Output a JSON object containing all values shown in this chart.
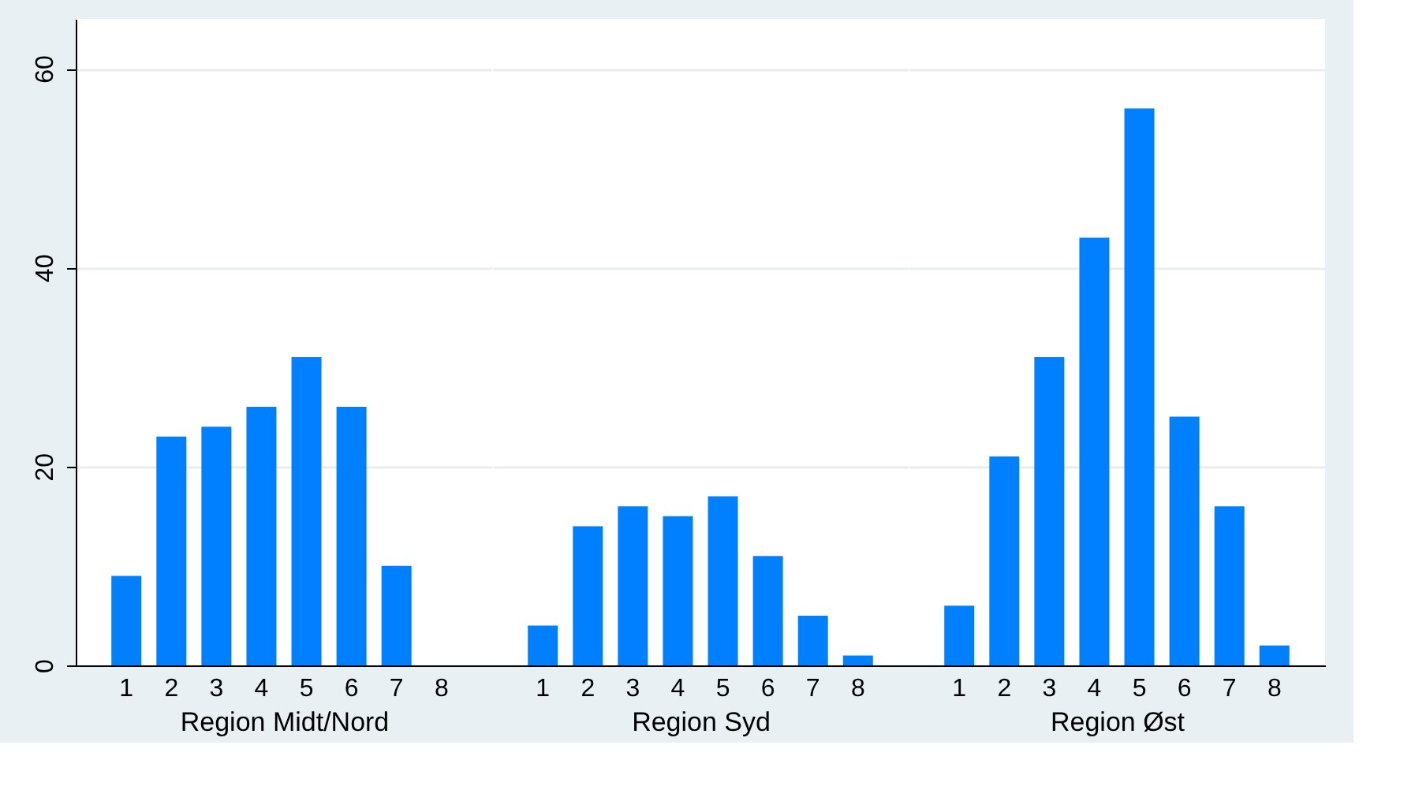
{
  "chart_data": [
    {
      "type": "bar",
      "xlabel": "Region Midt/Nord",
      "categories": [
        "1",
        "2",
        "3",
        "4",
        "5",
        "6",
        "7",
        "8"
      ],
      "values": [
        9,
        23,
        24,
        26,
        31,
        26,
        10,
        0
      ],
      "color": "#0080ff",
      "ylim": [
        0,
        65
      ],
      "yticks": [
        0,
        20,
        40,
        60
      ],
      "grid": "y"
    },
    {
      "type": "bar",
      "xlabel": "Region Syd",
      "categories": [
        "1",
        "2",
        "3",
        "4",
        "5",
        "6",
        "7",
        "8"
      ],
      "values": [
        4,
        14,
        16,
        15,
        17,
        11,
        5,
        1
      ],
      "color": "#0080ff",
      "ylim": [
        0,
        65
      ],
      "yticks": [
        0,
        20,
        40,
        60
      ],
      "grid": "y",
      "tick_labels": "x"
    },
    {
      "type": "bar",
      "xlabel": "Region Øst",
      "categories": [
        "1",
        "2",
        "3",
        "4",
        "5",
        "6",
        "7",
        "8"
      ],
      "values": [
        6,
        21,
        31,
        43,
        56,
        25,
        16,
        2
      ],
      "color": "#0080ff",
      "ylim": [
        0,
        65
      ],
      "yticks": [
        0,
        20,
        40,
        60
      ],
      "grid": "y",
      "tick_labels": "x"
    }
  ]
}
